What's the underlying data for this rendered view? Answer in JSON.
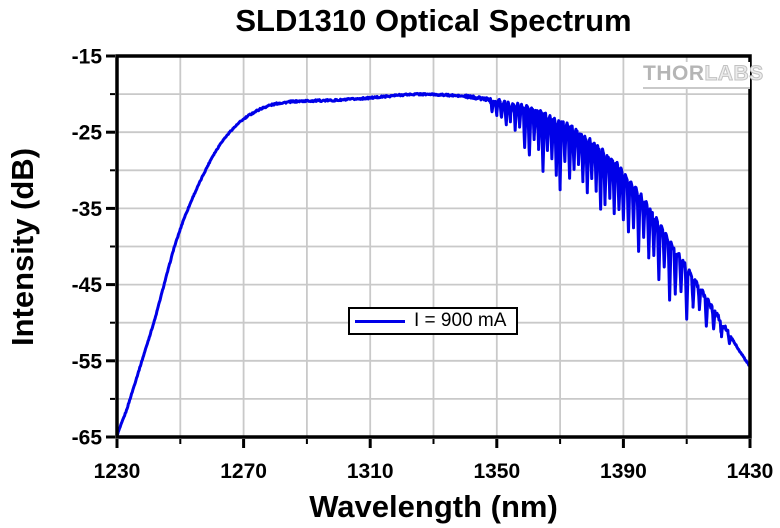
{
  "title": "SLD1310 Optical Spectrum",
  "watermark": {
    "solid": "THOR",
    "outline": "LABS"
  },
  "legend": {
    "label": "I = 900 mA"
  },
  "colors": {
    "curve": "#0000e8",
    "grid": "#c9c9c9",
    "axis": "#000000",
    "watermark_gray": "#b5b5b5",
    "background": "#ffffff"
  },
  "axes": {
    "x": {
      "label": "Wavelength (nm)",
      "min": 1230,
      "max": 1430,
      "major_ticks": [
        1230,
        1270,
        1310,
        1350,
        1390,
        1430
      ],
      "minor_ticks": [
        1250,
        1290,
        1330,
        1370,
        1410
      ]
    },
    "y": {
      "label": "Intensity (dB)",
      "min": -65,
      "max": -15,
      "major_ticks": [
        -15,
        -25,
        -35,
        -45,
        -55,
        -65
      ],
      "minor_ticks": [
        -20,
        -30,
        -40,
        -50,
        -60
      ]
    }
  },
  "chart_data": {
    "type": "line",
    "title": "SLD1310 Optical Spectrum",
    "xlabel": "Wavelength (nm)",
    "ylabel": "Intensity (dB)",
    "xlim": [
      1230,
      1430
    ],
    "ylim": [
      -65,
      -15
    ],
    "grid": true,
    "grid_spacing": {
      "x_nm": 20,
      "y_db": 5
    },
    "legend_position": "center-bottom",
    "series": [
      {
        "name": "I = 900 mA",
        "color": "#0000e8",
        "envelope": [
          [
            1230,
            -64.8
          ],
          [
            1233,
            -61.5
          ],
          [
            1236,
            -57.5
          ],
          [
            1239,
            -53.5
          ],
          [
            1242,
            -49.5
          ],
          [
            1245,
            -44.8
          ],
          [
            1248,
            -40.2
          ],
          [
            1251,
            -36.5
          ],
          [
            1254,
            -33.5
          ],
          [
            1257,
            -30.8
          ],
          [
            1260,
            -28.3
          ],
          [
            1263,
            -26.3
          ],
          [
            1266,
            -24.8
          ],
          [
            1269,
            -23.6
          ],
          [
            1272,
            -22.7
          ],
          [
            1275,
            -22.0
          ],
          [
            1278,
            -21.5
          ],
          [
            1281,
            -21.2
          ],
          [
            1285,
            -21.0
          ],
          [
            1290,
            -20.9
          ],
          [
            1295,
            -20.85
          ],
          [
            1300,
            -20.8
          ],
          [
            1305,
            -20.65
          ],
          [
            1310,
            -20.5
          ],
          [
            1315,
            -20.3
          ],
          [
            1320,
            -20.1
          ],
          [
            1325,
            -20.0
          ],
          [
            1330,
            -20.05
          ],
          [
            1335,
            -20.15
          ],
          [
            1340,
            -20.3
          ],
          [
            1344,
            -20.5
          ],
          [
            1348,
            -20.75
          ],
          [
            1352,
            -21.05
          ],
          [
            1356,
            -21.45
          ],
          [
            1360,
            -21.95
          ],
          [
            1364,
            -22.55
          ],
          [
            1368,
            -23.25
          ],
          [
            1372,
            -24.1
          ],
          [
            1376,
            -25.1
          ],
          [
            1380,
            -26.3
          ],
          [
            1384,
            -27.7
          ],
          [
            1388,
            -29.3
          ],
          [
            1392,
            -31.3
          ],
          [
            1396,
            -33.7
          ],
          [
            1400,
            -36.3
          ],
          [
            1404,
            -38.9
          ],
          [
            1408,
            -41.5
          ],
          [
            1412,
            -44.1
          ],
          [
            1416,
            -46.7
          ],
          [
            1420,
            -49.3
          ],
          [
            1424,
            -51.9
          ],
          [
            1427,
            -53.9
          ],
          [
            1430,
            -55.8
          ]
        ],
        "absorption_dips": [
          [
            1348.5,
            1.2
          ],
          [
            1350,
            1.8
          ],
          [
            1351.5,
            2.2
          ],
          [
            1353,
            2.8
          ],
          [
            1354.3,
            2.0
          ],
          [
            1355.8,
            3.2
          ],
          [
            1357.2,
            2.4
          ],
          [
            1358.8,
            5.0
          ],
          [
            1360.3,
            6.2
          ],
          [
            1361.8,
            3.5
          ],
          [
            1363.2,
            4.5
          ],
          [
            1364.6,
            7.5
          ],
          [
            1366,
            4.2
          ],
          [
            1367.4,
            5.5
          ],
          [
            1368.8,
            7.0
          ],
          [
            1370,
            8.6
          ],
          [
            1371.5,
            4.8
          ],
          [
            1373,
            6.5
          ],
          [
            1374.4,
            5.2
          ],
          [
            1375.8,
            4.0
          ],
          [
            1377.2,
            5.8
          ],
          [
            1378.6,
            6.8
          ],
          [
            1380,
            4.4
          ],
          [
            1381.4,
            5.6
          ],
          [
            1382.8,
            7.6
          ],
          [
            1384.2,
            6.4
          ],
          [
            1385.7,
            5.0
          ],
          [
            1387.1,
            6.6
          ],
          [
            1388.6,
            5.4
          ],
          [
            1390,
            6.0
          ],
          [
            1391.6,
            6.8
          ],
          [
            1393.2,
            5.2
          ],
          [
            1394.8,
            7.4
          ],
          [
            1396.4,
            4.6
          ],
          [
            1398,
            6.2
          ],
          [
            1399.6,
            5.0
          ],
          [
            1401.2,
            7.0
          ],
          [
            1402.9,
            4.2
          ],
          [
            1404.6,
            7.8
          ],
          [
            1406.4,
            5.6
          ],
          [
            1408.2,
            4.4
          ],
          [
            1410,
            6.6
          ],
          [
            1412,
            3.6
          ],
          [
            1414,
            2.8
          ],
          [
            1416.2,
            3.4
          ],
          [
            1418.5,
            2.2
          ],
          [
            1421,
            1.8
          ],
          [
            1423.5,
            1.2
          ]
        ],
        "noise_region": [
          1348,
          1423
        ],
        "noise_amplitude_db": 0.38
      }
    ]
  }
}
